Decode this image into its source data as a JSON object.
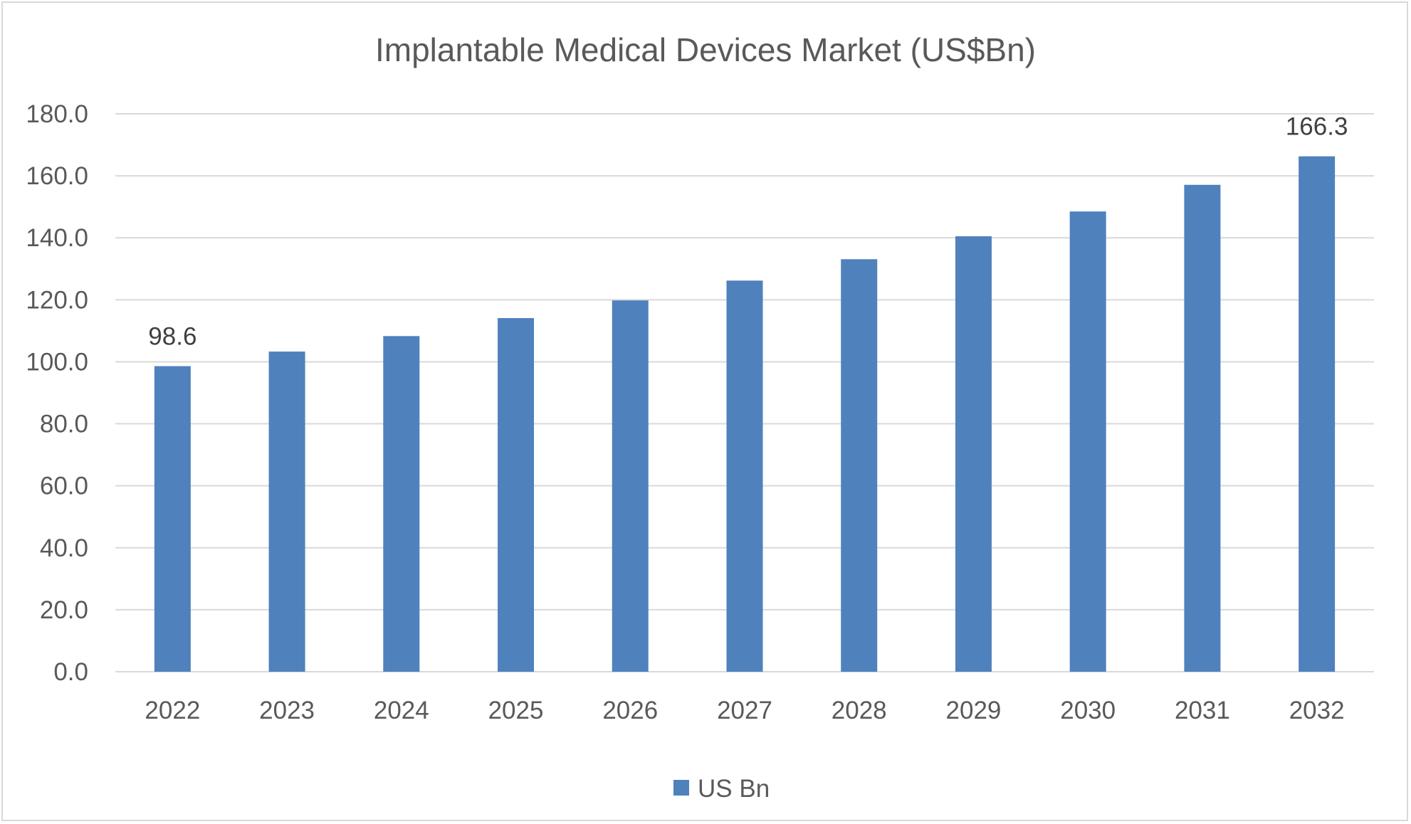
{
  "chart_data": {
    "type": "bar",
    "title": "Implantable Medical Devices Market (US$Bn)",
    "categories": [
      "2022",
      "2023",
      "2024",
      "2025",
      "2026",
      "2027",
      "2028",
      "2029",
      "2030",
      "2031",
      "2032"
    ],
    "series": [
      {
        "name": "US Bn",
        "color": "#4f81bd",
        "values": [
          98.6,
          103.3,
          108.3,
          114.1,
          119.8,
          126.2,
          133.1,
          140.5,
          148.5,
          157.1,
          166.3
        ]
      }
    ],
    "data_labels": [
      {
        "index": 0,
        "text": "98.6"
      },
      {
        "index": 10,
        "text": "166.3"
      }
    ],
    "yticks": [
      "0.0",
      "20.0",
      "40.0",
      "60.0",
      "80.0",
      "100.0",
      "120.0",
      "140.0",
      "160.0",
      "180.0"
    ],
    "ylim": [
      0,
      180
    ],
    "grid": true,
    "legend": "bottom"
  }
}
